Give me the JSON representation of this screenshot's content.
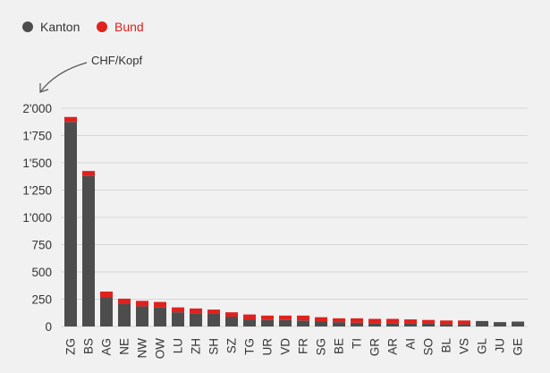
{
  "chart_data": {
    "type": "bar",
    "stacked": true,
    "title": "",
    "xlabel": "",
    "ylabel": "",
    "unit_annotation": "CHF/Kopf",
    "categories": [
      "ZG",
      "BS",
      "AG",
      "NE",
      "NW",
      "OW",
      "LU",
      "ZH",
      "SH",
      "SZ",
      "TG",
      "UR",
      "VD",
      "FR",
      "SG",
      "BE",
      "TI",
      "GR",
      "AR",
      "AI",
      "SO",
      "BL",
      "VS",
      "GL",
      "JU",
      "GE"
    ],
    "series": [
      {
        "name": "Kanton",
        "color": "#4d4d4d",
        "values": [
          1875,
          1380,
          270,
          205,
          185,
          175,
          130,
          120,
          115,
          90,
          65,
          60,
          60,
          55,
          45,
          40,
          35,
          30,
          30,
          25,
          25,
          20,
          20,
          50,
          40,
          45
        ]
      },
      {
        "name": "Bund",
        "color": "#e0211d",
        "values": [
          45,
          45,
          50,
          50,
          50,
          50,
          45,
          45,
          40,
          40,
          45,
          40,
          40,
          45,
          40,
          35,
          40,
          40,
          40,
          40,
          35,
          35,
          35,
          0,
          0,
          0
        ]
      }
    ],
    "ylim": [
      0,
      2000
    ],
    "yticks": [
      0,
      250,
      500,
      750,
      1000,
      1250,
      1500,
      1750,
      2000
    ],
    "ytick_labels": [
      "0",
      "250",
      "500",
      "750",
      "1'000",
      "1'250",
      "1'500",
      "1'750",
      "2'000"
    ],
    "grid": true,
    "legend_position": "top-left"
  }
}
